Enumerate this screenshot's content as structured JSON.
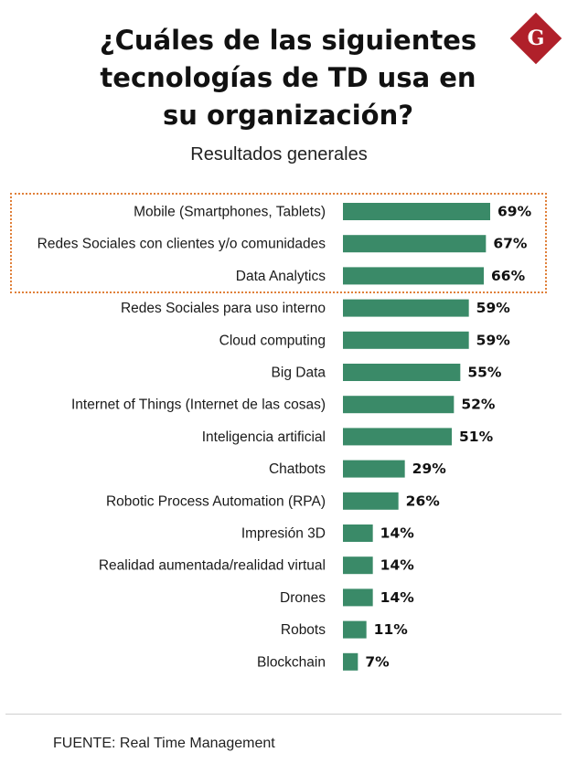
{
  "title": "¿Cuáles de las siguientes tecnologías de TD usa en su organización?",
  "subtitle": "Resultados generales",
  "logo_letter": "G",
  "source": "FUENTE: Real Time Management",
  "colors": {
    "bar": "#3a8a68",
    "highlight_border": "#e0803a",
    "logo": "#b0202a"
  },
  "chart_data": {
    "type": "bar",
    "orientation": "horizontal",
    "categories": [
      "Mobile (Smartphones, Tablets)",
      "Redes Sociales con clientes y/o comunidades",
      "Data Analytics",
      "Redes Sociales para uso interno",
      "Cloud computing",
      "Big Data",
      "Internet of Things (Internet de las cosas)",
      "Inteligencia artificial",
      "Chatbots",
      "Robotic Process Automation (RPA)",
      "Impresión 3D",
      "Realidad aumentada/realidad virtual",
      "Drones",
      "Robots",
      "Blockchain"
    ],
    "values": [
      69,
      67,
      66,
      59,
      59,
      55,
      52,
      51,
      29,
      26,
      14,
      14,
      14,
      11,
      7
    ],
    "labels": [
      "69%",
      "67%",
      "66%",
      "59%",
      "59%",
      "55%",
      "52%",
      "51%",
      "29%",
      "26%",
      "14%",
      "14%",
      "14%",
      "11%",
      "7%"
    ],
    "highlighted": [
      "Mobile (Smartphones, Tablets)",
      "Redes Sociales con clientes y/o comunidades",
      "Data Analytics"
    ],
    "title": "¿Cuáles de las siguientes tecnologías de TD usa en su organización?",
    "subtitle": "Resultados generales",
    "xlim": [
      0,
      100
    ],
    "grid": false
  }
}
